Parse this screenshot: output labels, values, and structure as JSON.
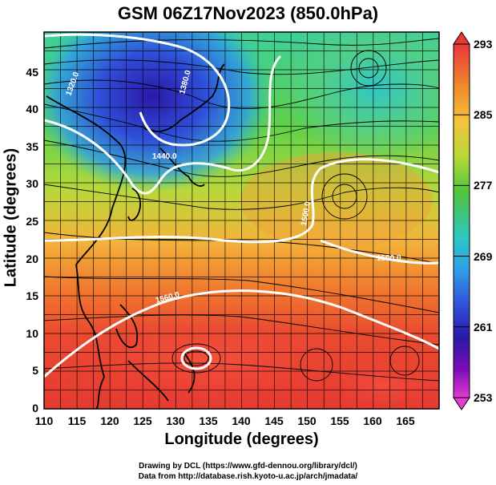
{
  "title": "GSM 06Z17Nov2023 (850.0hPa)",
  "x_axis": {
    "label": "Longitude (degrees)",
    "ticks": [
      "110",
      "115",
      "120",
      "125",
      "130",
      "135",
      "140",
      "145",
      "150",
      "155",
      "160",
      "165"
    ]
  },
  "y_axis": {
    "label": "Latitude (degrees)",
    "ticks": [
      "0",
      "5",
      "10",
      "15",
      "20",
      "25",
      "30",
      "35",
      "40",
      "45"
    ]
  },
  "colorbar": {
    "labels": [
      "293",
      "285",
      "277",
      "269",
      "261",
      "253"
    ],
    "colors": [
      "#e8373a",
      "#f08a2c",
      "#f4c43a",
      "#b7d83a",
      "#4fc43c",
      "#2ec6c6",
      "#2e9ee6",
      "#2f4fd8",
      "#2a18a8",
      "#7a0cb8",
      "#e63ad0"
    ]
  },
  "contour_labels": [
    "1320.0",
    "1380.0",
    "1440.0",
    "1500.0",
    "1500.0",
    "1560.0"
  ],
  "credits": {
    "line1": "Drawing by DCL (https://www.gfd-dennou.org/library/dcl/)",
    "line2": "Data from http://database.rish.kyoto-u.ac.jp/arch/jmadata/"
  }
}
